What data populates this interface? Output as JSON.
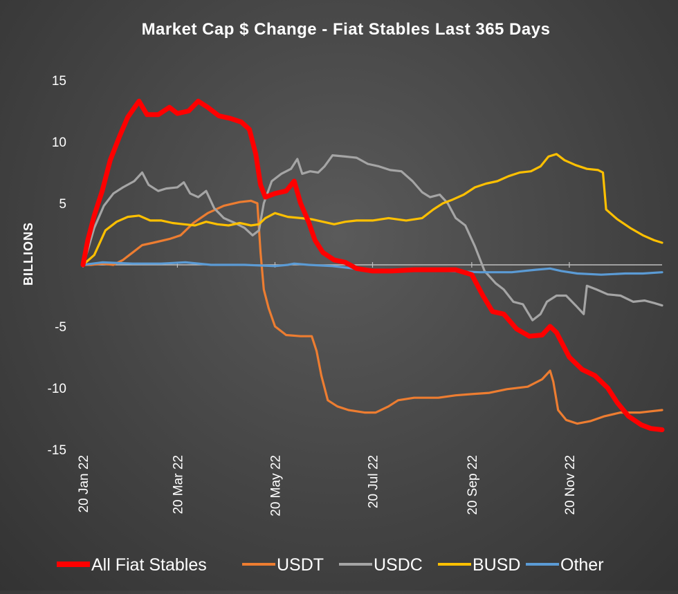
{
  "chart_data": {
    "type": "line",
    "title": "Market Cap $ Change - Fiat Stables Last 365 Days",
    "xlabel": "",
    "ylabel": "BILLIONS",
    "ylim": [
      -15,
      15
    ],
    "yticks": [
      15,
      10,
      5,
      -5,
      -10,
      -15
    ],
    "xlim": [
      "2022-01-20",
      "2023-01-17"
    ],
    "xticks": [
      {
        "date": "2022-01-20",
        "label": "20 Jan 22"
      },
      {
        "date": "2022-03-20",
        "label": "20 Mar 22"
      },
      {
        "date": "2022-05-20",
        "label": "20 May 22"
      },
      {
        "date": "2022-07-20",
        "label": "20 Jul 22"
      },
      {
        "date": "2022-09-20",
        "label": "20 Sep 22"
      },
      {
        "date": "2022-11-20",
        "label": "20 Nov 22"
      }
    ],
    "grid": false,
    "legend_position": "bottom",
    "series": [
      {
        "name": "All Fiat Stables",
        "color": "#ff0000",
        "points": [
          [
            "2022-01-20",
            0
          ],
          [
            "2022-01-23",
            2
          ],
          [
            "2022-01-27",
            4
          ],
          [
            "2022-02-01",
            6
          ],
          [
            "2022-02-06",
            8.5
          ],
          [
            "2022-02-12",
            10.5
          ],
          [
            "2022-02-17",
            12
          ],
          [
            "2022-02-24",
            13.3
          ],
          [
            "2022-03-01",
            12.2
          ],
          [
            "2022-03-08",
            12.2
          ],
          [
            "2022-03-15",
            12.8
          ],
          [
            "2022-03-20",
            12.3
          ],
          [
            "2022-03-27",
            12.5
          ],
          [
            "2022-04-02",
            13.3
          ],
          [
            "2022-04-08",
            12.8
          ],
          [
            "2022-04-15",
            12.1
          ],
          [
            "2022-04-22",
            11.9
          ],
          [
            "2022-04-29",
            11.6
          ],
          [
            "2022-05-04",
            11
          ],
          [
            "2022-05-08",
            9
          ],
          [
            "2022-05-11",
            6.5
          ],
          [
            "2022-05-14",
            5.5
          ],
          [
            "2022-05-20",
            5.8
          ],
          [
            "2022-05-27",
            6
          ],
          [
            "2022-06-01",
            6.8
          ],
          [
            "2022-06-05",
            5
          ],
          [
            "2022-06-10",
            3.5
          ],
          [
            "2022-06-14",
            2
          ],
          [
            "2022-06-19",
            1
          ],
          [
            "2022-06-26",
            0.4
          ],
          [
            "2022-07-03",
            0.2
          ],
          [
            "2022-07-10",
            -0.3
          ],
          [
            "2022-07-20",
            -0.5
          ],
          [
            "2022-08-01",
            -0.5
          ],
          [
            "2022-08-15",
            -0.4
          ],
          [
            "2022-08-30",
            -0.4
          ],
          [
            "2022-09-10",
            -0.4
          ],
          [
            "2022-09-20",
            -0.8
          ],
          [
            "2022-09-27",
            -2.5
          ],
          [
            "2022-10-03",
            -3.8
          ],
          [
            "2022-10-10",
            -4
          ],
          [
            "2022-10-18",
            -5.2
          ],
          [
            "2022-10-26",
            -5.8
          ],
          [
            "2022-11-03",
            -5.7
          ],
          [
            "2022-11-08",
            -5
          ],
          [
            "2022-11-12",
            -5.5
          ],
          [
            "2022-11-20",
            -7.5
          ],
          [
            "2022-11-28",
            -8.5
          ],
          [
            "2022-12-06",
            -9
          ],
          [
            "2022-12-14",
            -10
          ],
          [
            "2022-12-20",
            -11.2
          ],
          [
            "2022-12-27",
            -12.3
          ],
          [
            "2023-01-04",
            -13
          ],
          [
            "2023-01-10",
            -13.3
          ],
          [
            "2023-01-17",
            -13.4
          ]
        ]
      },
      {
        "name": "USDT",
        "color": "#ed7d31",
        "points": [
          [
            "2022-01-20",
            0
          ],
          [
            "2022-01-25",
            0
          ],
          [
            "2022-02-01",
            0.1
          ],
          [
            "2022-02-08",
            0
          ],
          [
            "2022-02-14",
            0.4
          ],
          [
            "2022-02-20",
            1
          ],
          [
            "2022-02-26",
            1.6
          ],
          [
            "2022-03-05",
            1.8
          ],
          [
            "2022-03-15",
            2.1
          ],
          [
            "2022-03-22",
            2.4
          ],
          [
            "2022-03-30",
            3.4
          ],
          [
            "2022-04-08",
            4.2
          ],
          [
            "2022-04-18",
            4.8
          ],
          [
            "2022-04-28",
            5.1
          ],
          [
            "2022-05-05",
            5.2
          ],
          [
            "2022-05-09",
            5
          ],
          [
            "2022-05-11",
            1
          ],
          [
            "2022-05-13",
            -2
          ],
          [
            "2022-05-16",
            -3.5
          ],
          [
            "2022-05-20",
            -5
          ],
          [
            "2022-05-27",
            -5.7
          ],
          [
            "2022-06-05",
            -5.8
          ],
          [
            "2022-06-12",
            -5.8
          ],
          [
            "2022-06-15",
            -7
          ],
          [
            "2022-06-18",
            -9
          ],
          [
            "2022-06-22",
            -11
          ],
          [
            "2022-06-28",
            -11.5
          ],
          [
            "2022-07-05",
            -11.8
          ],
          [
            "2022-07-15",
            -12
          ],
          [
            "2022-07-22",
            -12
          ],
          [
            "2022-07-30",
            -11.5
          ],
          [
            "2022-08-05",
            -11
          ],
          [
            "2022-08-15",
            -10.8
          ],
          [
            "2022-08-30",
            -10.8
          ],
          [
            "2022-09-10",
            -10.6
          ],
          [
            "2022-09-20",
            -10.5
          ],
          [
            "2022-10-01",
            -10.4
          ],
          [
            "2022-10-12",
            -10.1
          ],
          [
            "2022-10-25",
            -9.9
          ],
          [
            "2022-11-03",
            -9.3
          ],
          [
            "2022-11-08",
            -8.6
          ],
          [
            "2022-11-10",
            -9.5
          ],
          [
            "2022-11-13",
            -11.8
          ],
          [
            "2022-11-18",
            -12.6
          ],
          [
            "2022-11-25",
            -12.9
          ],
          [
            "2022-12-03",
            -12.7
          ],
          [
            "2022-12-12",
            -12.3
          ],
          [
            "2022-12-22",
            -12
          ],
          [
            "2023-01-03",
            -12
          ],
          [
            "2023-01-10",
            -11.9
          ],
          [
            "2023-01-17",
            -11.8
          ]
        ]
      },
      {
        "name": "USDC",
        "color": "#a5a5a5",
        "points": [
          [
            "2022-01-20",
            0
          ],
          [
            "2022-01-23",
            1.2
          ],
          [
            "2022-01-27",
            3
          ],
          [
            "2022-02-02",
            4.8
          ],
          [
            "2022-02-08",
            5.8
          ],
          [
            "2022-02-14",
            6.3
          ],
          [
            "2022-02-21",
            6.8
          ],
          [
            "2022-02-26",
            7.5
          ],
          [
            "2022-03-02",
            6.5
          ],
          [
            "2022-03-08",
            6
          ],
          [
            "2022-03-13",
            6.2
          ],
          [
            "2022-03-20",
            6.3
          ],
          [
            "2022-03-24",
            6.7
          ],
          [
            "2022-03-28",
            5.8
          ],
          [
            "2022-04-02",
            5.5
          ],
          [
            "2022-04-07",
            6
          ],
          [
            "2022-04-12",
            4.6
          ],
          [
            "2022-04-18",
            3.8
          ],
          [
            "2022-04-25",
            3.4
          ],
          [
            "2022-05-01",
            3
          ],
          [
            "2022-05-06",
            2.4
          ],
          [
            "2022-05-10",
            2.8
          ],
          [
            "2022-05-13",
            5
          ],
          [
            "2022-05-18",
            6.8
          ],
          [
            "2022-05-24",
            7.4
          ],
          [
            "2022-05-30",
            7.8
          ],
          [
            "2022-06-03",
            8.6
          ],
          [
            "2022-06-06",
            7.4
          ],
          [
            "2022-06-11",
            7.6
          ],
          [
            "2022-06-16",
            7.5
          ],
          [
            "2022-06-20",
            8
          ],
          [
            "2022-06-25",
            8.9
          ],
          [
            "2022-07-03",
            8.8
          ],
          [
            "2022-07-10",
            8.7
          ],
          [
            "2022-07-17",
            8.2
          ],
          [
            "2022-07-24",
            8
          ],
          [
            "2022-07-31",
            7.7
          ],
          [
            "2022-08-07",
            7.6
          ],
          [
            "2022-08-14",
            6.8
          ],
          [
            "2022-08-20",
            5.9
          ],
          [
            "2022-08-25",
            5.5
          ],
          [
            "2022-08-31",
            5.7
          ],
          [
            "2022-09-05",
            5
          ],
          [
            "2022-09-10",
            3.8
          ],
          [
            "2022-09-16",
            3.2
          ],
          [
            "2022-09-22",
            1.5
          ],
          [
            "2022-09-28",
            -0.5
          ],
          [
            "2022-10-05",
            -1.5
          ],
          [
            "2022-10-10",
            -2
          ],
          [
            "2022-10-16",
            -3
          ],
          [
            "2022-10-22",
            -3.2
          ],
          [
            "2022-10-28",
            -4.5
          ],
          [
            "2022-11-02",
            -4
          ],
          [
            "2022-11-06",
            -3
          ],
          [
            "2022-11-12",
            -2.5
          ],
          [
            "2022-11-18",
            -2.5
          ],
          [
            "2022-11-24",
            -3.3
          ],
          [
            "2022-11-29",
            -4
          ],
          [
            "2022-12-01",
            -1.7
          ],
          [
            "2022-12-07",
            -2
          ],
          [
            "2022-12-14",
            -2.4
          ],
          [
            "2022-12-22",
            -2.5
          ],
          [
            "2022-12-30",
            -3
          ],
          [
            "2023-01-06",
            -2.9
          ],
          [
            "2023-01-12",
            -3.1
          ],
          [
            "2023-01-17",
            -3.3
          ]
        ]
      },
      {
        "name": "BUSD",
        "color": "#ffc000",
        "points": [
          [
            "2022-01-20",
            0
          ],
          [
            "2022-01-27",
            0.8
          ],
          [
            "2022-02-03",
            2.8
          ],
          [
            "2022-02-10",
            3.5
          ],
          [
            "2022-02-17",
            3.9
          ],
          [
            "2022-02-24",
            4
          ],
          [
            "2022-03-03",
            3.6
          ],
          [
            "2022-03-10",
            3.6
          ],
          [
            "2022-03-17",
            3.4
          ],
          [
            "2022-03-24",
            3.3
          ],
          [
            "2022-03-31",
            3.2
          ],
          [
            "2022-04-07",
            3.5
          ],
          [
            "2022-04-14",
            3.3
          ],
          [
            "2022-04-21",
            3.2
          ],
          [
            "2022-04-28",
            3.4
          ],
          [
            "2022-05-05",
            3.2
          ],
          [
            "2022-05-10",
            3.3
          ],
          [
            "2022-05-14",
            3.8
          ],
          [
            "2022-05-20",
            4.2
          ],
          [
            "2022-05-28",
            3.9
          ],
          [
            "2022-06-05",
            3.8
          ],
          [
            "2022-06-12",
            3.7
          ],
          [
            "2022-06-19",
            3.5
          ],
          [
            "2022-06-26",
            3.3
          ],
          [
            "2022-07-03",
            3.5
          ],
          [
            "2022-07-10",
            3.6
          ],
          [
            "2022-07-20",
            3.6
          ],
          [
            "2022-07-30",
            3.8
          ],
          [
            "2022-08-10",
            3.6
          ],
          [
            "2022-08-20",
            3.8
          ],
          [
            "2022-08-27",
            4.5
          ],
          [
            "2022-09-02",
            5
          ],
          [
            "2022-09-08",
            5.3
          ],
          [
            "2022-09-15",
            5.7
          ],
          [
            "2022-09-22",
            6.3
          ],
          [
            "2022-09-29",
            6.6
          ],
          [
            "2022-10-06",
            6.8
          ],
          [
            "2022-10-13",
            7.2
          ],
          [
            "2022-10-20",
            7.5
          ],
          [
            "2022-10-27",
            7.6
          ],
          [
            "2022-11-02",
            8
          ],
          [
            "2022-11-07",
            8.8
          ],
          [
            "2022-11-12",
            9
          ],
          [
            "2022-11-17",
            8.5
          ],
          [
            "2022-11-24",
            8.1
          ],
          [
            "2022-12-01",
            7.8
          ],
          [
            "2022-12-08",
            7.7
          ],
          [
            "2022-12-11",
            7.5
          ],
          [
            "2022-12-13",
            4.5
          ],
          [
            "2022-12-20",
            3.7
          ],
          [
            "2022-12-28",
            3
          ],
          [
            "2023-01-05",
            2.4
          ],
          [
            "2023-01-12",
            2
          ],
          [
            "2023-01-17",
            1.8
          ]
        ]
      },
      {
        "name": "Other",
        "color": "#5b9bd5",
        "points": [
          [
            "2022-01-20",
            0
          ],
          [
            "2022-02-01",
            0.2
          ],
          [
            "2022-02-20",
            0.1
          ],
          [
            "2022-03-10",
            0.1
          ],
          [
            "2022-03-25",
            0.2
          ],
          [
            "2022-04-10",
            0
          ],
          [
            "2022-05-01",
            0
          ],
          [
            "2022-05-20",
            -0.1
          ],
          [
            "2022-05-28",
            0
          ],
          [
            "2022-06-01",
            0.1
          ],
          [
            "2022-06-10",
            0
          ],
          [
            "2022-06-25",
            -0.1
          ],
          [
            "2022-07-15",
            -0.4
          ],
          [
            "2022-08-10",
            -0.4
          ],
          [
            "2022-09-05",
            -0.5
          ],
          [
            "2022-09-25",
            -0.6
          ],
          [
            "2022-10-15",
            -0.6
          ],
          [
            "2022-10-30",
            -0.4
          ],
          [
            "2022-11-08",
            -0.3
          ],
          [
            "2022-11-15",
            -0.5
          ],
          [
            "2022-11-25",
            -0.7
          ],
          [
            "2022-12-10",
            -0.8
          ],
          [
            "2022-12-25",
            -0.7
          ],
          [
            "2023-01-05",
            -0.7
          ],
          [
            "2023-01-17",
            -0.6
          ]
        ]
      }
    ]
  }
}
